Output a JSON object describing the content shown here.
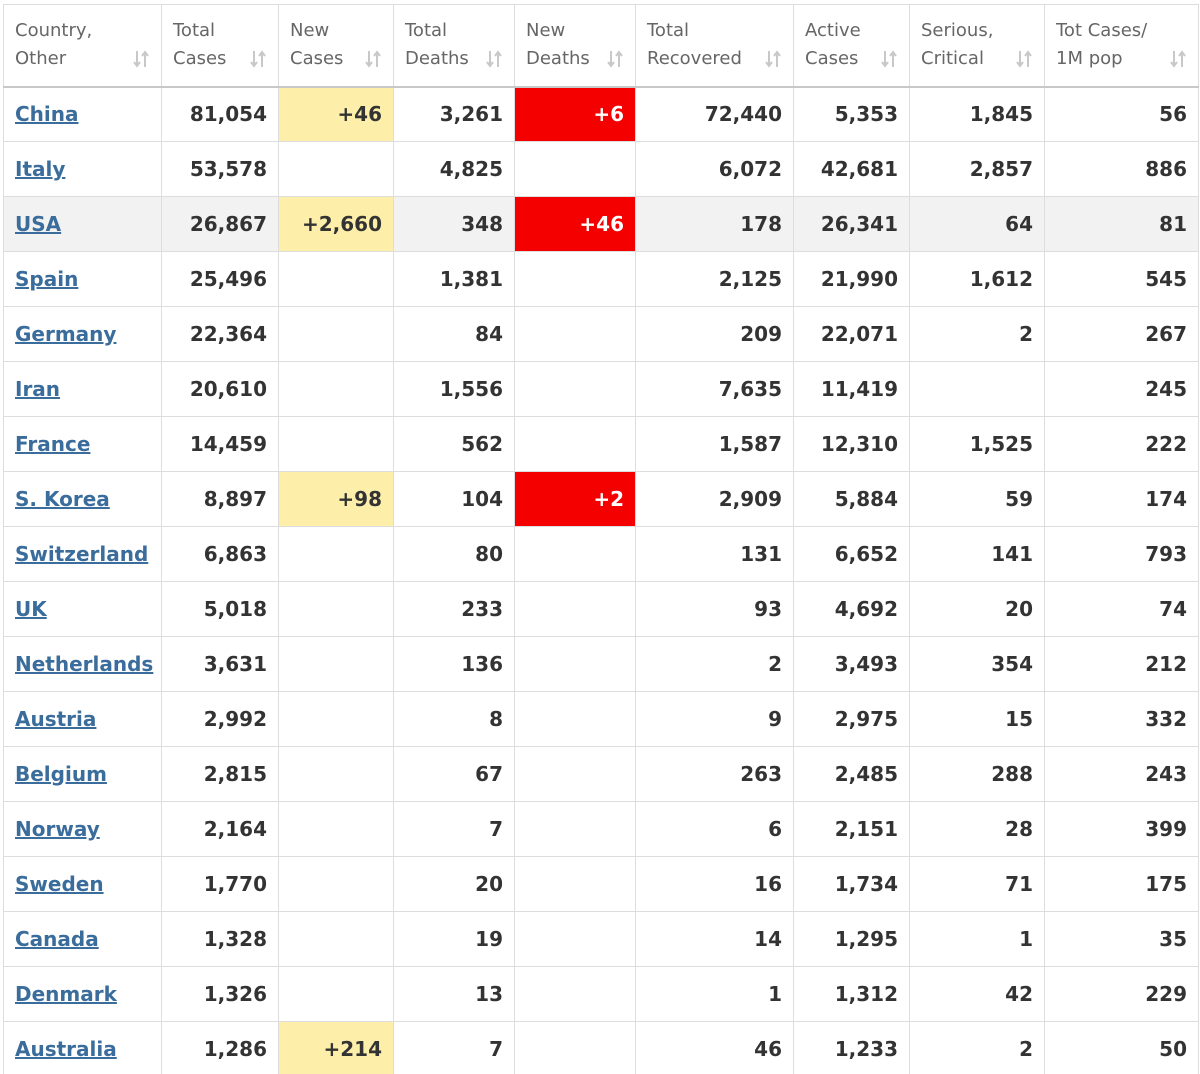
{
  "table": {
    "columns": [
      [
        "Country,",
        "Other"
      ],
      [
        "Total",
        "Cases"
      ],
      [
        "New",
        "Cases"
      ],
      [
        "Total",
        "Deaths"
      ],
      [
        "New",
        "Deaths"
      ],
      [
        "Total",
        "Recovered"
      ],
      [
        "Active",
        "Cases"
      ],
      [
        "Serious,",
        "Critical"
      ],
      [
        "Tot Cases/",
        "1M pop"
      ]
    ],
    "rows": [
      [
        "China",
        "81,054",
        "+46",
        "3,261",
        "+6",
        "72,440",
        "5,353",
        "1,845",
        "56"
      ],
      [
        "Italy",
        "53,578",
        null,
        "4,825",
        null,
        "6,072",
        "42,681",
        "2,857",
        "886"
      ],
      [
        "USA",
        "26,867",
        "+2,660",
        "348",
        "+46",
        "178",
        "26,341",
        "64",
        "81"
      ],
      [
        "Spain",
        "25,496",
        null,
        "1,381",
        null,
        "2,125",
        "21,990",
        "1,612",
        "545"
      ],
      [
        "Germany",
        "22,364",
        null,
        "84",
        null,
        "209",
        "22,071",
        "2",
        "267"
      ],
      [
        "Iran",
        "20,610",
        null,
        "1,556",
        null,
        "7,635",
        "11,419",
        null,
        "245"
      ],
      [
        "France",
        "14,459",
        null,
        "562",
        null,
        "1,587",
        "12,310",
        "1,525",
        "222"
      ],
      [
        "S. Korea",
        "8,897",
        "+98",
        "104",
        "+2",
        "2,909",
        "5,884",
        "59",
        "174"
      ],
      [
        "Switzerland",
        "6,863",
        null,
        "80",
        null,
        "131",
        "6,652",
        "141",
        "793"
      ],
      [
        "UK",
        "5,018",
        null,
        "233",
        null,
        "93",
        "4,692",
        "20",
        "74"
      ],
      [
        "Netherlands",
        "3,631",
        null,
        "136",
        null,
        "2",
        "3,493",
        "354",
        "212"
      ],
      [
        "Austria",
        "2,992",
        null,
        "8",
        null,
        "9",
        "2,975",
        "15",
        "332"
      ],
      [
        "Belgium",
        "2,815",
        null,
        "67",
        null,
        "263",
        "2,485",
        "288",
        "243"
      ],
      [
        "Norway",
        "2,164",
        null,
        "7",
        null,
        "6",
        "2,151",
        "28",
        "399"
      ],
      [
        "Sweden",
        "1,770",
        null,
        "20",
        null,
        "16",
        "1,734",
        "71",
        "175"
      ],
      [
        "Canada",
        "1,328",
        null,
        "19",
        null,
        "14",
        "1,295",
        "1",
        "35"
      ],
      [
        "Denmark",
        "1,326",
        null,
        "13",
        null,
        "1",
        "1,312",
        "42",
        "229"
      ],
      [
        "Australia",
        "1,286",
        "+214",
        "7",
        null,
        "46",
        "1,233",
        "2",
        "50"
      ]
    ]
  }
}
